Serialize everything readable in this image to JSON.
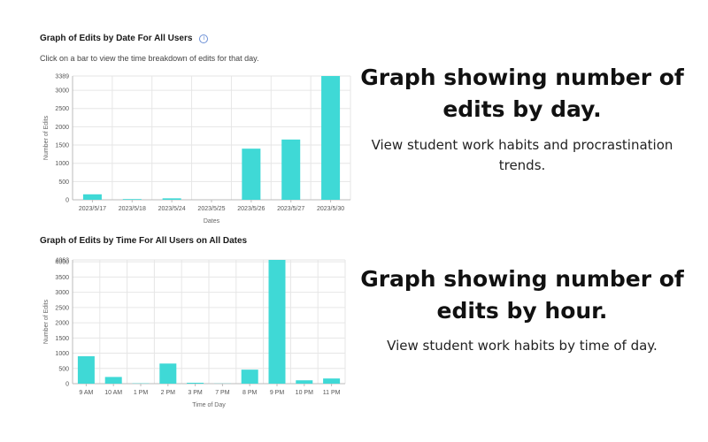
{
  "top_panel": {
    "title": "Graph of Edits by Date For All Users",
    "info_icon": "info-icon",
    "subtitle": "Click on a bar to view the time breakdown of edits for that day."
  },
  "bottom_panel": {
    "title": "Graph of Edits by Time For All Users on All Dates"
  },
  "right_text": {
    "heading1": "Graph showing number of edits by day.",
    "desc1": "View student work habits and procrastination trends.",
    "heading2": "Graph showing number of edits by hour.",
    "desc2": "View student work habits by time of day."
  },
  "colors": {
    "bar": "#3fd9d6",
    "grid": "#e6e6e6",
    "axis": "#bbbbbb"
  },
  "chart_data": [
    {
      "type": "bar",
      "title": "Graph of Edits by Date For All Users",
      "xlabel": "Dates",
      "ylabel": "Number of Edits",
      "categories": [
        "2023/5/17",
        "2023/5/18",
        "2023/5/24",
        "2023/5/25",
        "2023/5/26",
        "2023/5/27",
        "2023/5/30"
      ],
      "values": [
        150,
        20,
        40,
        0,
        1400,
        1650,
        3389
      ],
      "yticks": [
        0,
        500,
        1000,
        1500,
        2000,
        2500,
        3000,
        3389
      ],
      "ylim": [
        0,
        3389
      ],
      "grid": true
    },
    {
      "type": "bar",
      "title": "Graph of Edits by Time For All Users on All Dates",
      "xlabel": "Time of Day",
      "ylabel": "Number of Edits",
      "categories": [
        "9 AM",
        "10 AM",
        "1 PM",
        "2 PM",
        "3 PM",
        "7 PM",
        "8 PM",
        "9 PM",
        "10 PM",
        "11 PM"
      ],
      "values": [
        900,
        220,
        10,
        660,
        30,
        5,
        460,
        4063,
        110,
        170
      ],
      "yticks": [
        0,
        500,
        1000,
        1500,
        2000,
        2500,
        3000,
        3500,
        4000,
        4063
      ],
      "ylim": [
        0,
        4063
      ],
      "grid": true
    }
  ]
}
